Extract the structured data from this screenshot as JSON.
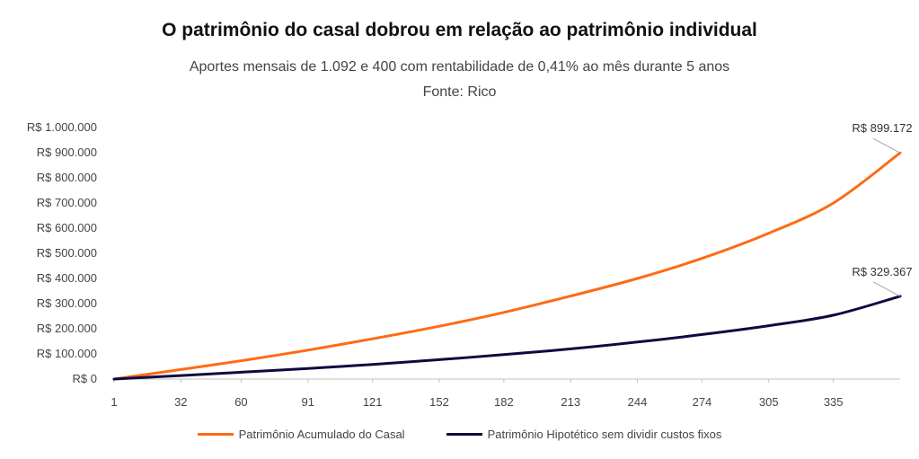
{
  "title": "O patrimônio do casal dobrou em relação ao patrimônio individual",
  "subtitle": "Aportes mensais de 1.092 e 400 com rentabilidade de 0,41% ao mês durante 5 anos",
  "source": "Fonte: Rico",
  "chart_data": {
    "type": "line",
    "title": "O patrimônio do casal dobrou em relação ao patrimônio individual",
    "x_ticks": [
      "1",
      "32",
      "60",
      "91",
      "121",
      "152",
      "182",
      "213",
      "244",
      "274",
      "305",
      "335"
    ],
    "xlim": [
      1,
      366
    ],
    "ylim": [
      0,
      1000000
    ],
    "y_ticks": [
      {
        "value": 0,
        "label": "R$ 0"
      },
      {
        "value": 100000,
        "label": "R$ 100.000"
      },
      {
        "value": 200000,
        "label": "R$ 200.000"
      },
      {
        "value": 300000,
        "label": "R$ 300.000"
      },
      {
        "value": 400000,
        "label": "R$ 400.000"
      },
      {
        "value": 500000,
        "label": "R$ 500.000"
      },
      {
        "value": 600000,
        "label": "R$ 600.000"
      },
      {
        "value": 700000,
        "label": "R$ 700.000"
      },
      {
        "value": 800000,
        "label": "R$ 800.000"
      },
      {
        "value": 900000,
        "label": "R$ 900.000"
      },
      {
        "value": 1000000,
        "label": "R$ 1.000.000"
      }
    ],
    "grid": false,
    "legend_position": "bottom",
    "series": [
      {
        "name": "Patrimônio Acumulado do Casal",
        "color": "#ff6a13",
        "x": [
          1,
          32,
          60,
          91,
          121,
          152,
          182,
          213,
          244,
          274,
          305,
          335,
          366
        ],
        "y": [
          0,
          38000,
          73000,
          115000,
          160000,
          210000,
          265000,
          330000,
          400000,
          480000,
          580000,
          700000,
          899172
        ],
        "end_label": "R$ 899.172"
      },
      {
        "name": "Patrimônio Hipotético sem dividir custos fixos",
        "color": "#0e0a3f",
        "x": [
          1,
          32,
          60,
          91,
          121,
          152,
          182,
          213,
          244,
          274,
          305,
          335,
          366
        ],
        "y": [
          0,
          14000,
          27000,
          42000,
          58000,
          77000,
          97000,
          120000,
          147000,
          177000,
          212000,
          254000,
          329367
        ],
        "end_label": "R$ 329.367"
      }
    ]
  }
}
